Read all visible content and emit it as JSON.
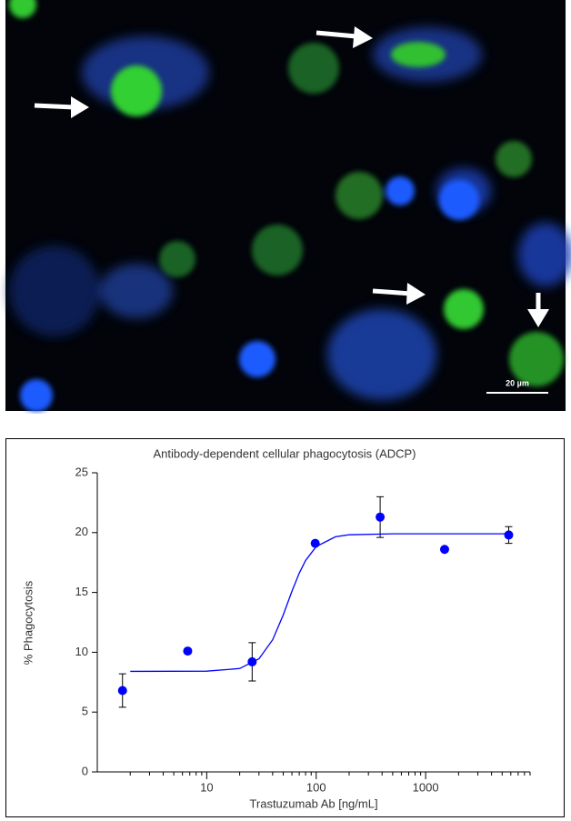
{
  "image": {
    "scale_bar_label": "20 µm"
  },
  "chart_data": {
    "type": "scatter",
    "title": "Antibody-dependent cellular phagocytosis (ADCP)",
    "xlabel": "Trastuzumab Ab [ng/mL]",
    "ylabel": "% Phagocytosis",
    "xscale": "log",
    "xlim": [
      1,
      9000
    ],
    "xticks": [
      10,
      100,
      1000
    ],
    "xminorticks": [
      2,
      3,
      4,
      5,
      6,
      7,
      8,
      9,
      20,
      30,
      40,
      50,
      60,
      70,
      80,
      90,
      200,
      300,
      400,
      500,
      600,
      700,
      800,
      900,
      2000,
      3000,
      4000,
      5000,
      6000,
      7000,
      8000,
      9000
    ],
    "ylim": [
      0,
      25
    ],
    "yticks": [
      0,
      5,
      10,
      15,
      20,
      25
    ],
    "series": [
      {
        "color": "#0000ff",
        "x": [
          1.7,
          6.7,
          26,
          98,
          384,
          1490,
          5740
        ],
        "values": [
          6.8,
          10.1,
          9.2,
          19.1,
          21.3,
          18.6,
          19.8
        ],
        "errors": [
          1.4,
          0.2,
          1.6,
          0.15,
          1.7,
          0.15,
          0.7
        ]
      },
      {
        "type": "line",
        "color": "#0000ff",
        "x": [
          2,
          10,
          20,
          30,
          40,
          50,
          60,
          70,
          80,
          100,
          150,
          200,
          500,
          1000,
          5500
        ],
        "values": [
          8.4,
          8.42,
          8.64,
          9.45,
          11.04,
          13.12,
          15.09,
          16.61,
          17.67,
          18.83,
          19.65,
          19.82,
          19.9,
          19.9,
          19.9
        ]
      }
    ]
  }
}
